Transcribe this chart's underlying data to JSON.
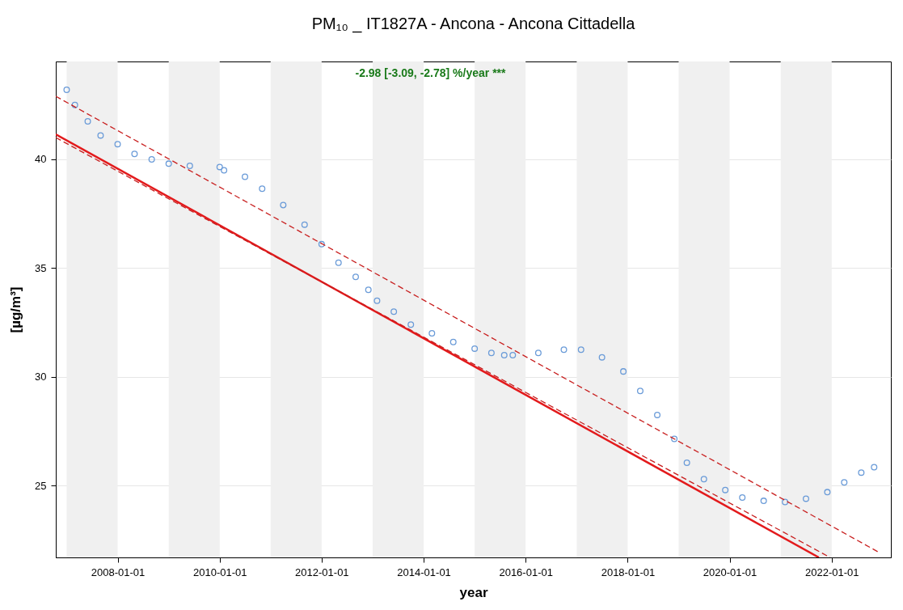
{
  "chart_data": {
    "type": "scatter",
    "title": "PM₁₀ _ IT1827A - Ancona - Ancona Cittadella",
    "xlabel": "year",
    "ylabel": "[µg/m³]",
    "annotations": [
      "-2.98 [-3.09, -2.78] %/year ***"
    ],
    "xlim": [
      "2006-10-15",
      "2023-03-01"
    ],
    "xticks": [
      {
        "value": "2008-01-01",
        "label": "2008-01-01"
      },
      {
        "value": "2010-01-01",
        "label": "2010-01-01"
      },
      {
        "value": "2012-01-01",
        "label": "2012-01-01"
      },
      {
        "value": "2014-01-01",
        "label": "2014-01-01"
      },
      {
        "value": "2016-01-01",
        "label": "2016-01-01"
      },
      {
        "value": "2018-01-01",
        "label": "2018-01-01"
      },
      {
        "value": "2020-01-01",
        "label": "2020-01-01"
      },
      {
        "value": "2022-01-01",
        "label": "2022-01-01"
      }
    ],
    "ylim": [
      21.7,
      44.5
    ],
    "yticks": [
      25,
      30,
      35,
      40
    ],
    "grid": "y",
    "series": [
      {
        "color": "#6a9bd8",
        "marker": "circle",
        "x": [
          "2007-01",
          "2007-03",
          "2007-06",
          "2007-09",
          "2008-01",
          "2008-05",
          "2008-09",
          "2009-01",
          "2009-06",
          "2010-01",
          "2010-02",
          "2010-07",
          "2010-11",
          "2011-04",
          "2011-09",
          "2012-01",
          "2012-05",
          "2012-09",
          "2012-12",
          "2013-02",
          "2013-06",
          "2013-10",
          "2014-03",
          "2014-08",
          "2015-01",
          "2015-05",
          "2015-08",
          "2015-10",
          "2016-04",
          "2016-10",
          "2017-02",
          "2017-07",
          "2017-12",
          "2018-04",
          "2018-08",
          "2018-12",
          "2019-03",
          "2019-07",
          "2019-12",
          "2020-04",
          "2020-09",
          "2021-02",
          "2021-07",
          "2021-12",
          "2022-04",
          "2022-08",
          "2022-11"
        ],
        "values": [
          43.2,
          42.5,
          41.75,
          41.1,
          40.7,
          40.25,
          40.0,
          39.8,
          39.7,
          39.65,
          39.5,
          39.2,
          38.65,
          37.9,
          37.0,
          36.1,
          35.25,
          34.6,
          34.0,
          33.5,
          33.0,
          32.4,
          32.0,
          31.6,
          31.3,
          31.1,
          31.0,
          31.0,
          31.1,
          31.25,
          31.25,
          30.9,
          30.25,
          29.35,
          28.25,
          27.15,
          26.05,
          25.3,
          24.8,
          24.45,
          24.3,
          24.25,
          24.4,
          24.7,
          25.15,
          25.6,
          25.85
        ]
      },
      {
        "type": "line",
        "color": "#e31a1c",
        "line_style": "solid",
        "x": [
          "2006-10-15",
          "2021-10-01"
        ],
        "values": [
          41.15,
          21.7
        ]
      },
      {
        "type": "line",
        "color": "#c81e1e",
        "line_style": "dashed",
        "x": [
          "2006-10-15",
          "2022-12-15"
        ],
        "values": [
          42.9,
          21.9
        ]
      },
      {
        "type": "line",
        "color": "#c81e1e",
        "line_style": "dashed",
        "x": [
          "2006-10-15",
          "2021-12-20"
        ],
        "values": [
          41.0,
          21.7
        ]
      }
    ],
    "bands": [
      {
        "axis": "x",
        "from": "2007-01-01",
        "to": "2008-01-01",
        "color": "#f0f0f0"
      },
      {
        "axis": "x",
        "from": "2009-01-01",
        "to": "2010-01-01",
        "color": "#f0f0f0"
      },
      {
        "axis": "x",
        "from": "2011-01-01",
        "to": "2012-01-01",
        "color": "#f0f0f0"
      },
      {
        "axis": "x",
        "from": "2013-01-01",
        "to": "2014-01-01",
        "color": "#f0f0f0"
      },
      {
        "axis": "x",
        "from": "2015-01-01",
        "to": "2016-01-01",
        "color": "#f0f0f0"
      },
      {
        "axis": "x",
        "from": "2017-01-01",
        "to": "2018-01-01",
        "color": "#f0f0f0"
      },
      {
        "axis": "x",
        "from": "2019-01-01",
        "to": "2020-01-01",
        "color": "#f0f0f0"
      },
      {
        "axis": "x",
        "from": "2021-01-01",
        "to": "2022-01-01",
        "color": "#f0f0f0"
      }
    ]
  }
}
